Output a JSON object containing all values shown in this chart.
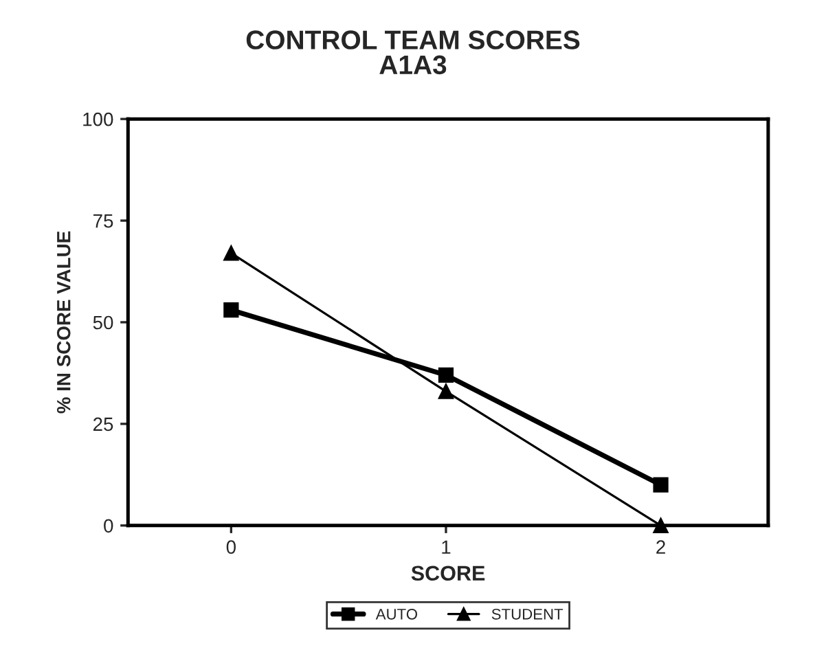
{
  "chart_data": {
    "type": "line",
    "title": "CONTROL TEAM SCORES\nA1A3",
    "xlabel": "SCORE",
    "ylabel": "% IN SCORE VALUE",
    "categories": [
      "0",
      "1",
      "2"
    ],
    "series": [
      {
        "name": "AUTO",
        "color": "#000000",
        "marker": "square",
        "values": [
          53,
          37,
          10
        ]
      },
      {
        "name": "STUDENT",
        "color": "#000000",
        "marker": "triangle",
        "values": [
          67,
          33,
          0
        ]
      }
    ],
    "ylim": [
      0,
      100
    ],
    "yticks": [
      0,
      25,
      50,
      75,
      100
    ],
    "grid": false,
    "legend": "bottom",
    "line_style": "solid"
  }
}
